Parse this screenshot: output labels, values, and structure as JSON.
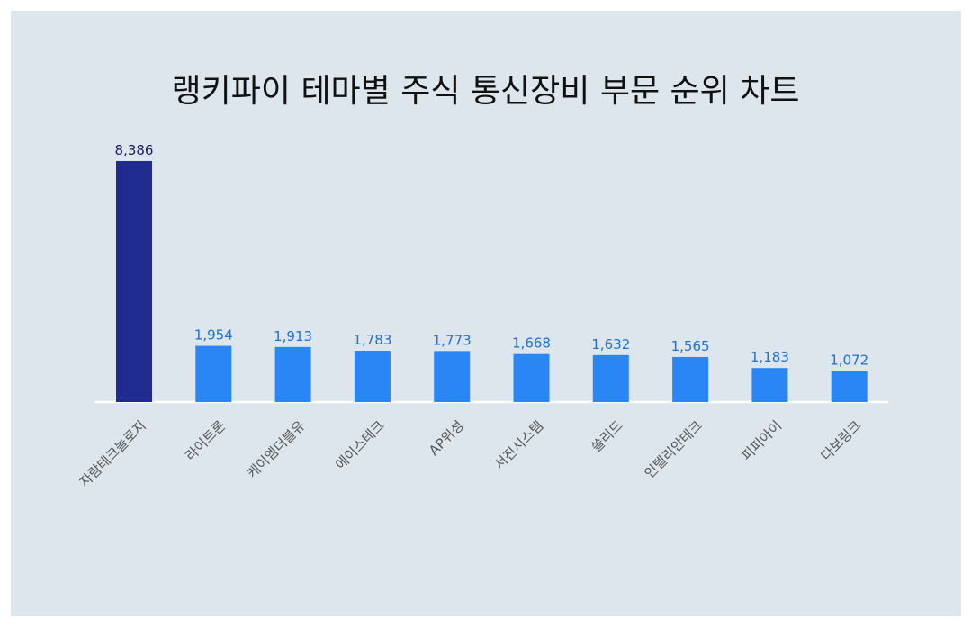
{
  "chart_data": {
    "type": "bar",
    "title": "랭키파이 테마별 주식 통신장비 부문 순위 차트",
    "categories": [
      "자람테크놀로지",
      "라이트론",
      "케이엠더블유",
      "에이스테크",
      "AP위성",
      "서진시스템",
      "쏠리드",
      "인텔리안테크",
      "피피아이",
      "다보링크"
    ],
    "values": [
      8386,
      1954,
      1913,
      1783,
      1773,
      1668,
      1632,
      1565,
      1183,
      1072
    ],
    "value_labels": [
      "8,386",
      "1,954",
      "1,913",
      "1,783",
      "1,773",
      "1,668",
      "1,632",
      "1,565",
      "1,183",
      "1,072"
    ],
    "ylim": [
      0,
      8386
    ],
    "grid": false,
    "legend": "none",
    "colors": {
      "highlight_bar": "#1f2b8f",
      "highlight_label": "#1a1a66",
      "bar": "#2a86f5",
      "bar_label": "#1f6fd6",
      "background": "#dce6ec",
      "axis": "#ffffff"
    }
  }
}
